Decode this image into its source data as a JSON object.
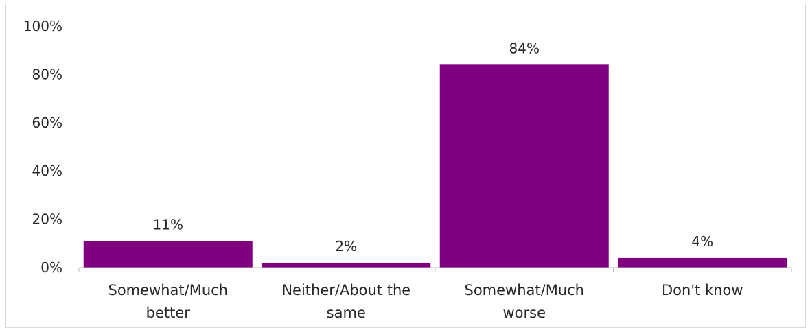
{
  "chart_data": {
    "type": "bar",
    "categories": [
      [
        "Somewhat/Much",
        "better"
      ],
      [
        "Neither/About the",
        "same"
      ],
      [
        "Somewhat/Much",
        "worse"
      ],
      [
        "Don't know"
      ]
    ],
    "values": [
      11,
      2,
      84,
      4
    ],
    "data_labels": [
      "11%",
      "2%",
      "84%",
      "4%"
    ],
    "yticks": [
      "0%",
      "20%",
      "40%",
      "60%",
      "80%",
      "100%"
    ],
    "ylim": [
      0,
      100
    ],
    "grid": false,
    "legend": "none",
    "bar_color": "#800080"
  }
}
